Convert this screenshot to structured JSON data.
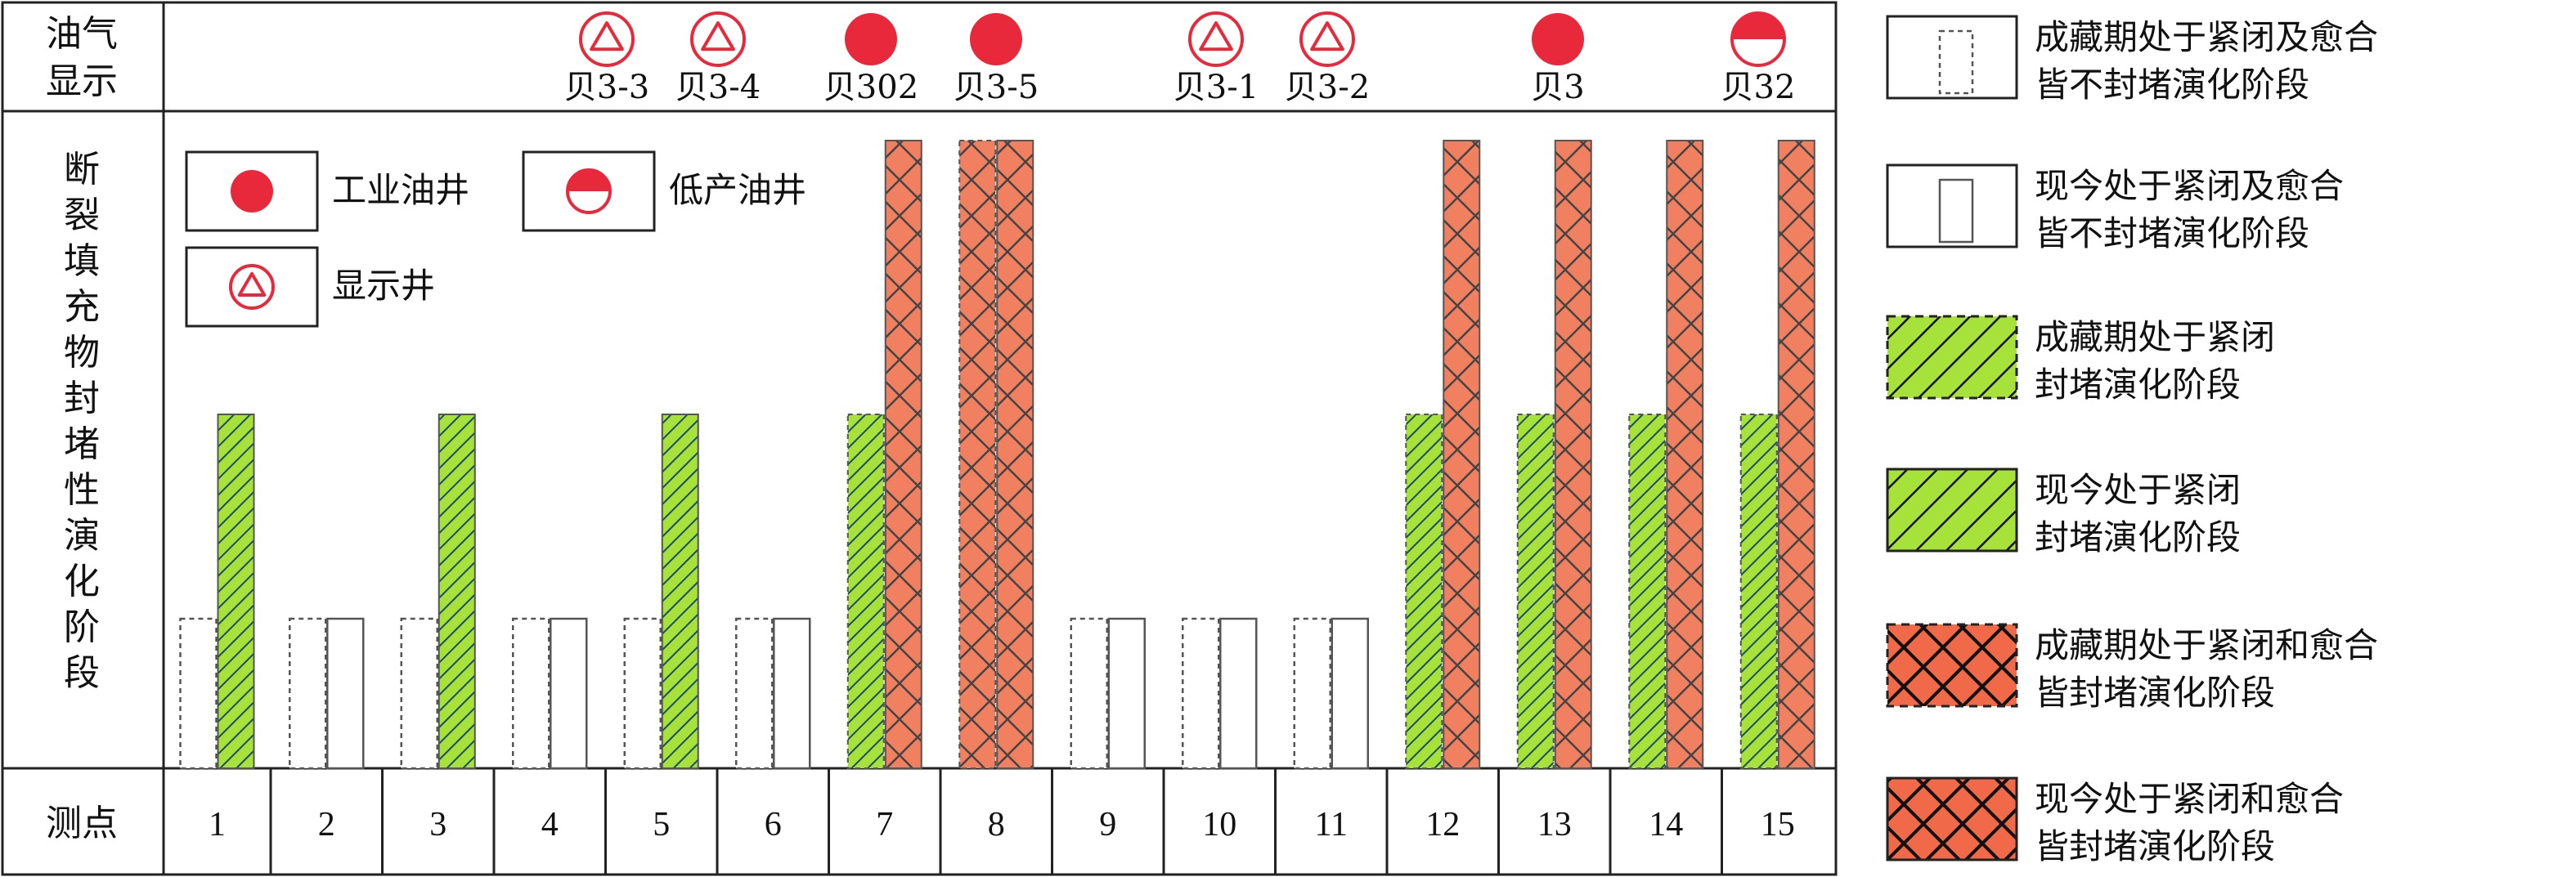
{
  "chart_data": {
    "type": "bar",
    "header_top": "油气",
    "header_bottom": "显示",
    "ylabel": "断裂填充物封堵性演化阶段",
    "xlabel": "测点",
    "categories": [
      "1",
      "2",
      "3",
      "4",
      "5",
      "6",
      "7",
      "8",
      "9",
      "10",
      "11",
      "12",
      "13",
      "14",
      "15"
    ],
    "stage_scale": [
      0,
      1,
      2,
      3
    ],
    "series": [
      {
        "name": "成藏期",
        "values": [
          1,
          1,
          1,
          1,
          1,
          1,
          2,
          3,
          1,
          1,
          1,
          2,
          2,
          2,
          2
        ]
      },
      {
        "name": "现今",
        "values": [
          2,
          1,
          2,
          1,
          2,
          1,
          3,
          3,
          1,
          1,
          1,
          3,
          3,
          3,
          3
        ]
      }
    ],
    "oil_show": [
      {
        "type": "显示井",
        "label": "贝3-3"
      },
      {
        "type": "显示井",
        "label": "贝3-4"
      },
      {
        "type": "工业油井",
        "label": "贝302"
      },
      {
        "type": "工业油井",
        "label": "贝3-5"
      },
      {
        "type": "显示井",
        "label": "贝3-1"
      },
      {
        "type": "显示井",
        "label": "贝3-2"
      },
      {
        "type": "工业油井",
        "label": "贝3"
      },
      {
        "type": "低产油井",
        "label": "贝32"
      }
    ],
    "well_legend": [
      {
        "type": "工业油井",
        "label": "工业油井"
      },
      {
        "type": "低产油井",
        "label": "低产油井"
      },
      {
        "type": "显示井",
        "label": "显示井"
      }
    ],
    "stage_legend": [
      {
        "stage": 1,
        "period": "成藏期",
        "line1": "成藏期处于紧闭及愈合",
        "line2": "皆不封堵演化阶段"
      },
      {
        "stage": 1,
        "period": "现今",
        "line1": "现今处于紧闭及愈合",
        "line2": "皆不封堵演化阶段"
      },
      {
        "stage": 2,
        "period": "成藏期",
        "line1": "成藏期处于紧闭",
        "line2": "封堵演化阶段"
      },
      {
        "stage": 2,
        "period": "现今",
        "line1": "现今处于紧闭",
        "line2": "封堵演化阶段"
      },
      {
        "stage": 3,
        "period": "成藏期",
        "line1": "成藏期处于紧闭和愈合",
        "line2": "皆封堵演化阶段"
      },
      {
        "stage": 3,
        "period": "现今",
        "line1": "现今处于紧闭和愈合",
        "line2": "皆封堵演化阶段"
      }
    ],
    "colors": {
      "industrial_well": "#e8293c",
      "show_well_stroke": "#e8293c",
      "stage2_fill": "#a6e23a",
      "stage2_hatch": "#1b4a6b",
      "stage3_fill": "#f08060",
      "stage3_hatch": "#444444",
      "stage1_stroke": "#555555"
    }
  }
}
